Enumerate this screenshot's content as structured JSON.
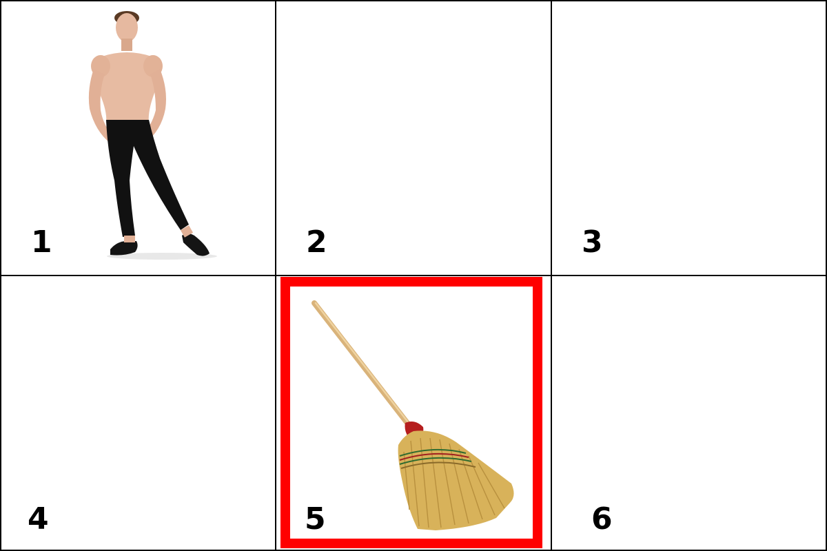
{
  "cells": [
    {
      "label": "1",
      "content": "dancer"
    },
    {
      "label": "2",
      "content": ""
    },
    {
      "label": "3",
      "content": ""
    },
    {
      "label": "4",
      "content": ""
    },
    {
      "label": "5",
      "content": "broom"
    },
    {
      "label": "6",
      "content": ""
    }
  ],
  "selected_cell": "5",
  "colors": {
    "grid_line": "#000000",
    "selection": "#ff0000",
    "background": "#ffffff"
  }
}
